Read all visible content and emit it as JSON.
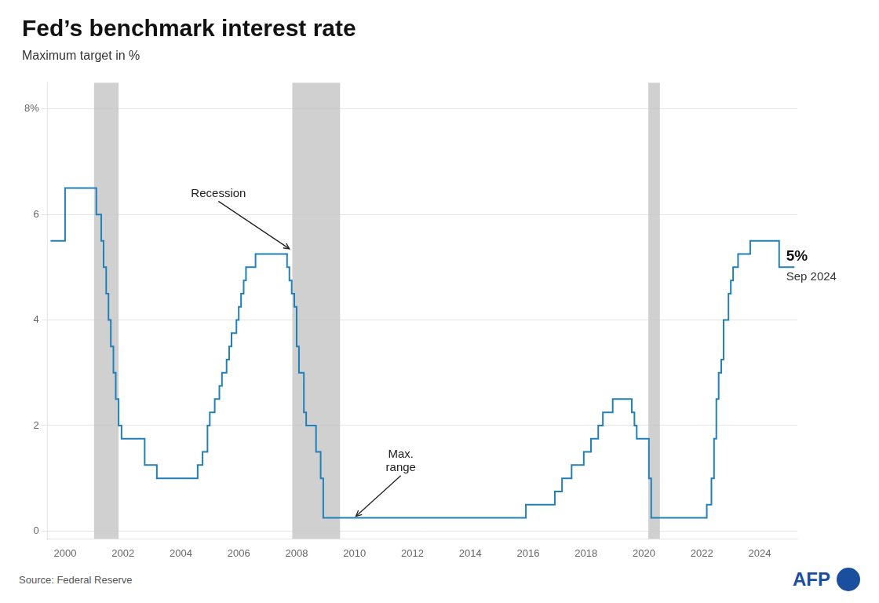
{
  "chart_data": {
    "type": "line",
    "title": "Fed’s benchmark interest rate",
    "subtitle": "Maximum target in %",
    "source": "Source: Federal Reserve",
    "logo": {
      "text": "AFP",
      "color": "#1a4fa0"
    },
    "color": "#2080b8",
    "line_style": "step",
    "grid": true,
    "bands": {
      "color": "#c8c8c8",
      "ranges": [
        [
          2001.0,
          2001.85
        ],
        [
          2007.85,
          2009.5
        ],
        [
          2020.15,
          2020.55
        ]
      ]
    },
    "annotations": [
      {
        "text": "Recession",
        "xy": [
          2007.75,
          5.35
        ],
        "xytext": [
          2005.3,
          6.25
        ]
      },
      {
        "text": "Max.\nrange",
        "xy": [
          2010.05,
          0.28
        ],
        "xytext": [
          2011.6,
          1.05
        ]
      },
      {
        "text": "5%",
        "subtext": "Sep 2024",
        "x": 2024.75,
        "y": 5.0
      }
    ],
    "xlim": [
      1999.4,
      2025.3
    ],
    "xticks": [
      2000,
      2002,
      2004,
      2006,
      2008,
      2010,
      2012,
      2014,
      2016,
      2018,
      2020,
      2022,
      2024
    ],
    "ylim": [
      -0.15,
      8.5
    ],
    "yticks": [
      0,
      2,
      4,
      6,
      {
        "value": 8,
        "label": "8%"
      }
    ],
    "x": [
      1999.5,
      2000.0,
      2001.0,
      2001.08,
      2001.25,
      2001.33,
      2001.42,
      2001.5,
      2001.58,
      2001.67,
      2001.75,
      2001.85,
      2001.95,
      2002.58,
      2002.75,
      2003.17,
      2004.58,
      2004.75,
      2004.92,
      2004.92,
      2005.0,
      2005.17,
      2005.33,
      2005.42,
      2005.58,
      2005.67,
      2005.75,
      2005.92,
      2006.0,
      2006.08,
      2006.17,
      2006.25,
      2006.58,
      2007.58,
      2007.67,
      2007.75,
      2007.83,
      2007.92,
      2008.0,
      2008.08,
      2008.25,
      2008.33,
      2008.5,
      2008.67,
      2008.83,
      2008.92,
      2009.0,
      2015.92,
      2015.92,
      2016.75,
      2016.92,
      2017.17,
      2017.5,
      2017.92,
      2018.17,
      2018.42,
      2018.58,
      2018.92,
      2019.42,
      2019.58,
      2019.67,
      2019.75,
      2020.0,
      2020.17,
      2020.25,
      2021.92,
      2022.17,
      2022.33,
      2022.42,
      2022.5,
      2022.58,
      2022.67,
      2022.75,
      2022.92,
      2023.0,
      2023.08,
      2023.25,
      2023.67,
      2024.58,
      2024.67,
      2025.2
    ],
    "values": [
      5.5,
      6.5,
      6.5,
      6.0,
      5.5,
      5.0,
      4.5,
      4.0,
      3.5,
      3.0,
      2.5,
      2.0,
      1.75,
      1.75,
      1.25,
      1.0,
      1.25,
      1.5,
      1.75,
      2.0,
      2.25,
      2.5,
      2.75,
      3.0,
      3.25,
      3.5,
      3.75,
      4.0,
      4.25,
      4.5,
      4.75,
      5.0,
      5.25,
      5.25,
      5.0,
      4.75,
      4.5,
      4.25,
      3.5,
      3.0,
      2.25,
      2.0,
      2.0,
      1.5,
      1.0,
      0.25,
      0.25,
      0.25,
      0.5,
      0.5,
      0.75,
      1.0,
      1.25,
      1.5,
      1.75,
      2.0,
      2.25,
      2.5,
      2.5,
      2.25,
      2.0,
      1.75,
      1.75,
      1.0,
      0.25,
      0.25,
      0.5,
      1.0,
      1.75,
      2.5,
      3.0,
      3.25,
      4.0,
      4.5,
      4.75,
      5.0,
      5.25,
      5.5,
      5.5,
      5.0,
      5.0
    ]
  }
}
